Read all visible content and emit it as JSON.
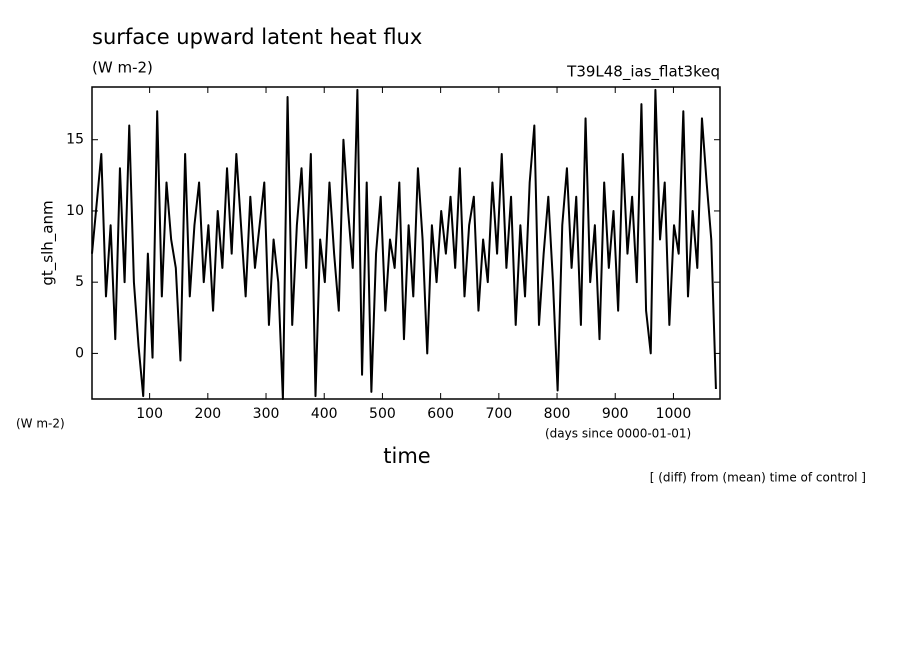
{
  "chart_data": {
    "type": "line",
    "title": "surface upward latent heat flux",
    "subtitle": "(W m-2)",
    "run_label": "T39L48_ias_flat3keq",
    "y_label": "gt_slh_anm",
    "y_unit": "(W m-2)",
    "x_unit": "(days since 0000-01-01)",
    "x_label": "time",
    "note": "[ (diff) from (mean) time of control ]",
    "xlim": [
      1,
      1080
    ],
    "ylim": [
      -3.2,
      18.7
    ],
    "xticks": [
      100,
      200,
      300,
      400,
      500,
      600,
      700,
      800,
      900,
      1000
    ],
    "yticks": [
      0,
      5,
      10,
      15
    ],
    "x": [
      1,
      9,
      17,
      25,
      33,
      41,
      49,
      57,
      65,
      73,
      81,
      89,
      97,
      105,
      113,
      121,
      129,
      137,
      145,
      153,
      161,
      169,
      177,
      185,
      193,
      201,
      209,
      217,
      225,
      233,
      241,
      249,
      257,
      265,
      273,
      281,
      289,
      297,
      305,
      313,
      321,
      329,
      337,
      345,
      353,
      361,
      369,
      377,
      385,
      393,
      401,
      409,
      417,
      425,
      433,
      441,
      449,
      457,
      465,
      473,
      481,
      489,
      497,
      505,
      513,
      521,
      529,
      537,
      545,
      553,
      561,
      569,
      577,
      585,
      593,
      601,
      609,
      617,
      625,
      633,
      641,
      649,
      657,
      665,
      673,
      681,
      689,
      697,
      705,
      713,
      721,
      729,
      737,
      745,
      753,
      761,
      769,
      777,
      785,
      793,
      801,
      809,
      817,
      825,
      833,
      841,
      849,
      857,
      865,
      873,
      881,
      889,
      897,
      905,
      913,
      921,
      929,
      937,
      945,
      953,
      961,
      969,
      977,
      985,
      993,
      1001,
      1009,
      1017,
      1025,
      1033,
      1041,
      1049,
      1057,
      1065,
      1073
    ],
    "series": [
      {
        "color": "#000000",
        "values": [
          7,
          10.5,
          14,
          4,
          9,
          1,
          13,
          5,
          16,
          5,
          0.5,
          -3,
          7,
          -0.3,
          17,
          4,
          12,
          8,
          6,
          -0.5,
          14,
          4,
          9,
          12,
          5,
          9,
          3,
          10,
          6,
          13,
          7,
          14,
          9,
          4,
          11,
          6,
          9,
          12,
          2,
          8,
          5,
          -3.2,
          18,
          2,
          9,
          13,
          6,
          14,
          -3,
          8,
          5,
          12,
          7,
          3,
          15,
          10,
          6,
          18.5,
          -1.5,
          12,
          -2.7,
          7,
          11,
          3,
          8,
          6,
          12,
          1,
          9,
          4,
          13,
          8,
          0,
          9,
          5,
          10,
          7,
          11,
          6,
          13,
          4,
          9,
          11,
          3,
          8,
          5,
          12,
          7,
          14,
          6,
          11,
          2,
          9,
          4,
          12,
          16,
          2,
          7,
          11,
          5,
          -2.6,
          9,
          13,
          6,
          11,
          2,
          16.5,
          5,
          9,
          1,
          12,
          6,
          10,
          3,
          14,
          7,
          11,
          5,
          17.5,
          3,
          0,
          18.5,
          8,
          12,
          2,
          9,
          7,
          17,
          4,
          10,
          6,
          16.5,
          12,
          8,
          -2.5
        ]
      }
    ]
  }
}
